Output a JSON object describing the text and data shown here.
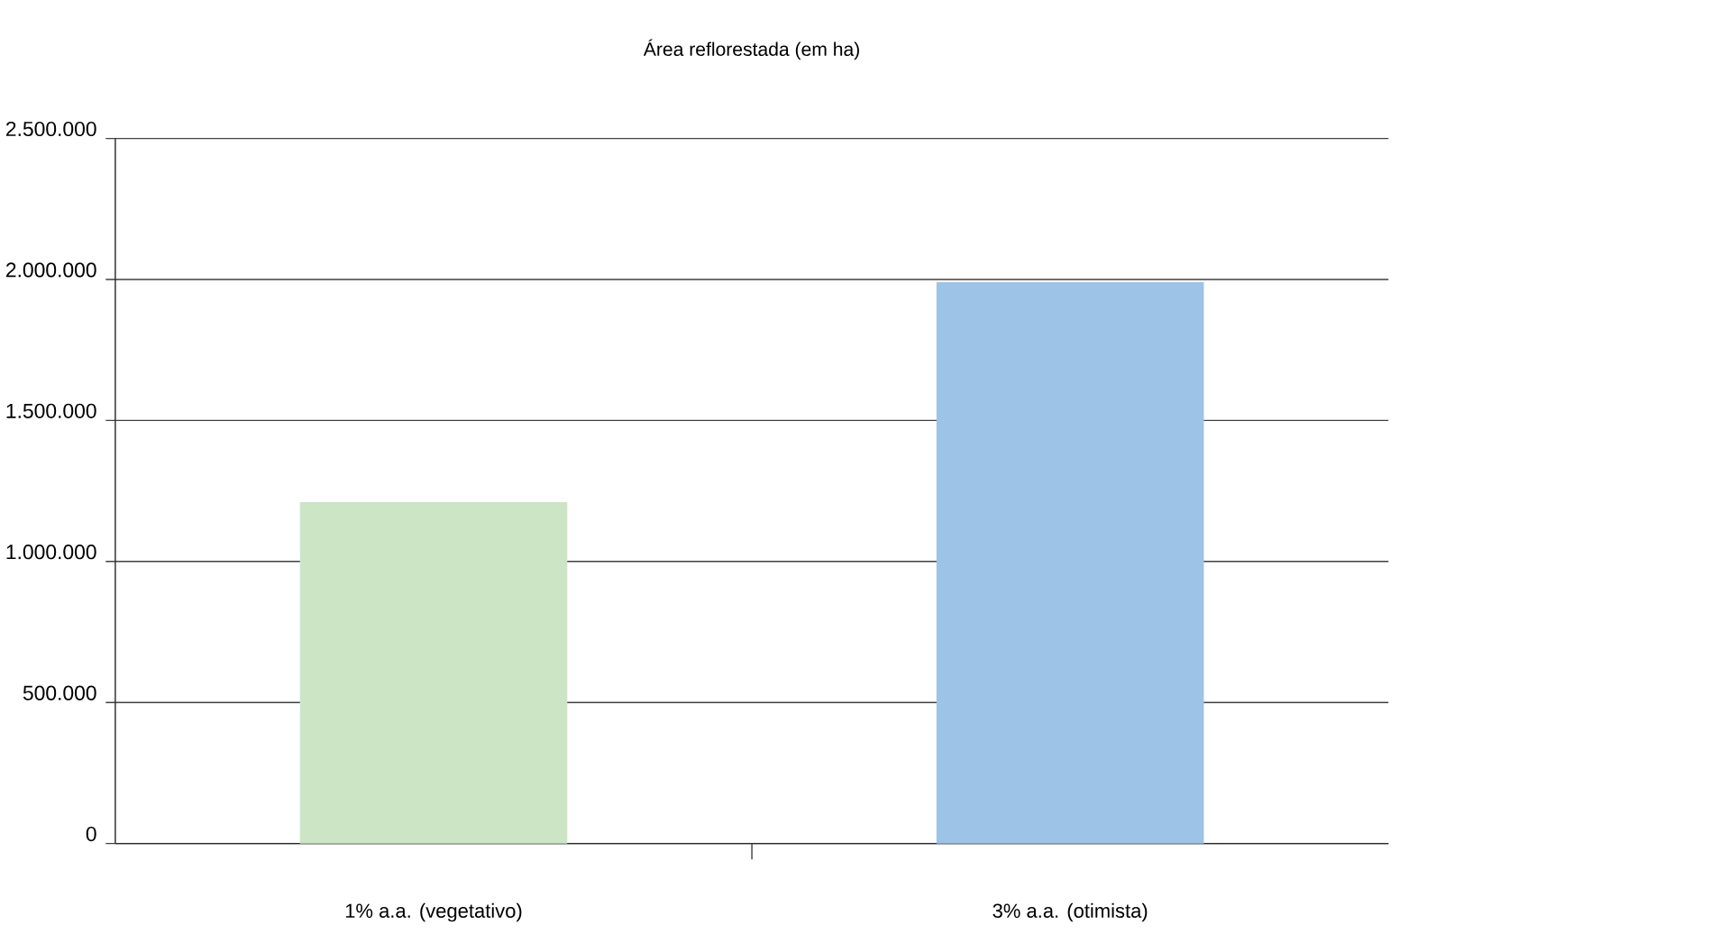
{
  "chart_data": {
    "type": "bar",
    "title": "Área reflorestada (em ha)",
    "categories": [
      "1% a.a. (vegetativo)",
      "3% a.a. (otimista)"
    ],
    "values": [
      1210000,
      1990000
    ],
    "colors": [
      "#cce5c4",
      "#9dc3e6"
    ],
    "ylim": [
      0,
      2500000
    ],
    "yticks": [
      0,
      {
        "value": 500000,
        "label": "500.000"
      },
      {
        "value": 1000000,
        "label": "1.000.000"
      },
      {
        "value": 1500000,
        "label": "1.500.000"
      },
      {
        "value": 2000000,
        "label": "2.000.000"
      },
      {
        "value": 2500000,
        "label": "2.500.000"
      }
    ],
    "grid": "y"
  }
}
